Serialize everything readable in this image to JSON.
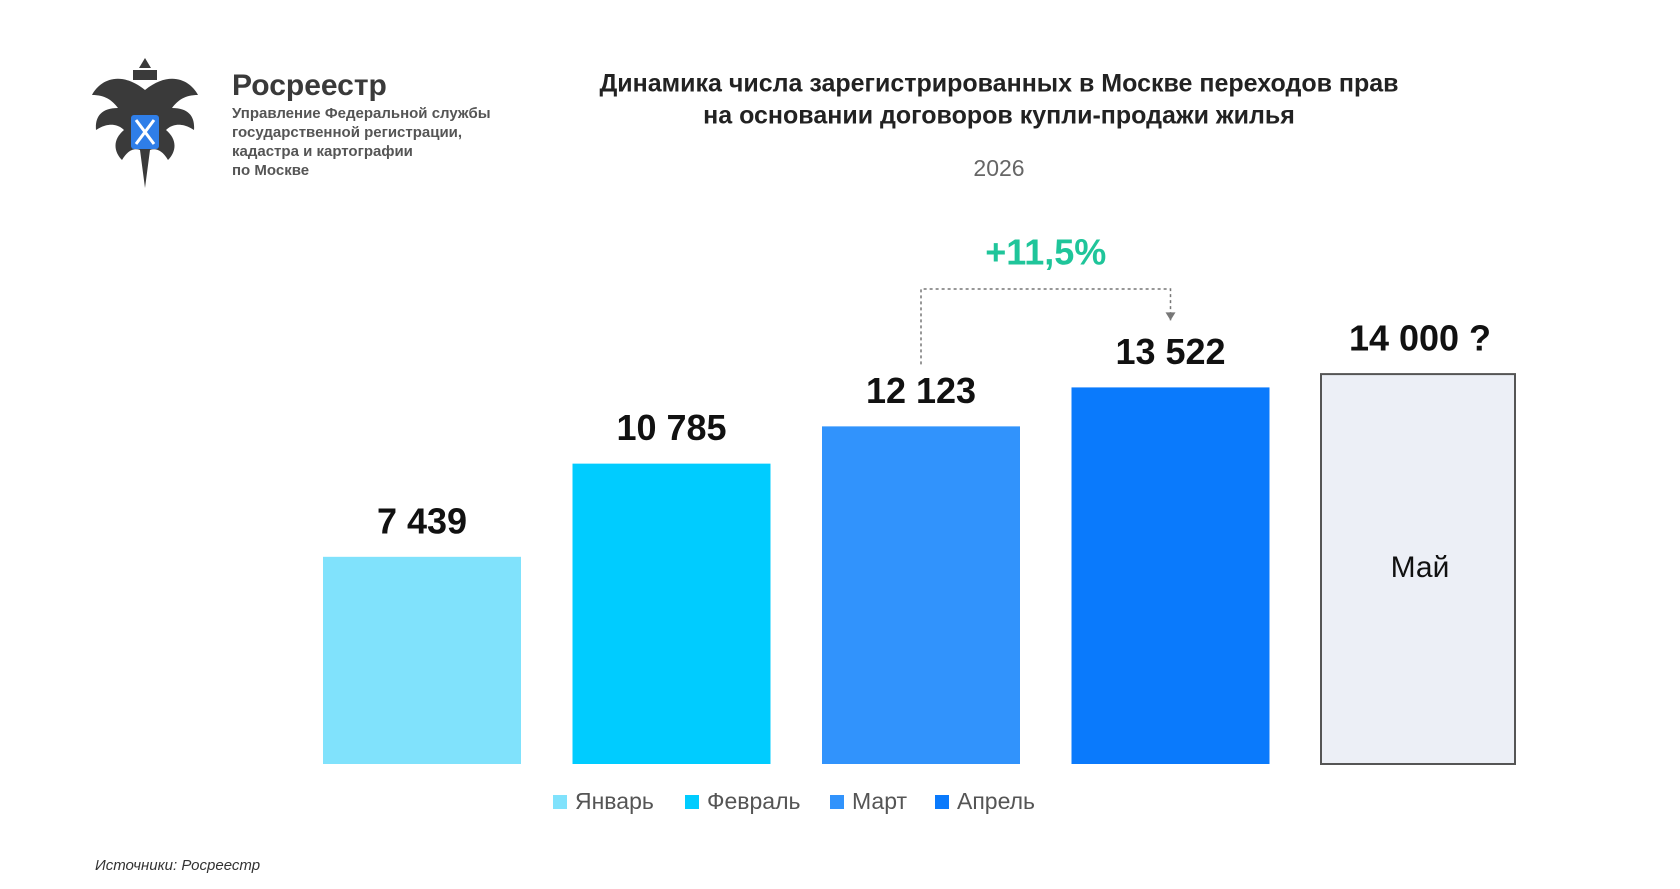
{
  "header": {
    "org_name": "Росреестр",
    "org_lines": [
      "Управление Федеральной службы",
      "государственной регистрации,",
      "кадастра и картографии",
      "по Москве"
    ]
  },
  "chart_data": {
    "type": "bar",
    "title": [
      "Динамика числа зарегистрированных в Москве переходов прав",
      "на основании договоров купли-продажи жилья"
    ],
    "subtitle": "2026",
    "categories": [
      "Январь",
      "Февраль",
      "Март",
      "Апрель",
      "Май"
    ],
    "values": [
      7439,
      10785,
      12123,
      13522,
      14000
    ],
    "value_labels": [
      "7 439",
      "10 785",
      "12 123",
      "13 522",
      "14 000 ?"
    ],
    "colors": [
      "#80e2fc",
      "#00ccff",
      "#3193fc",
      "#0a7afc",
      "#eceff6"
    ],
    "annotation": "+11,5%"
  },
  "source": "Источники: Росреестр"
}
